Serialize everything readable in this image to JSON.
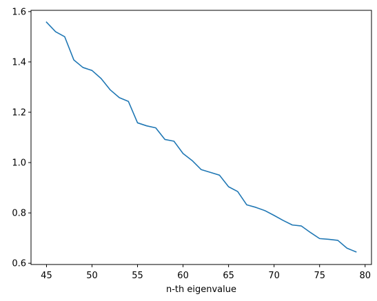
{
  "chart_data": {
    "type": "line",
    "title": "",
    "xlabel": "n-th eigenvalue",
    "ylabel": "",
    "xlim": [
      43.3,
      80.7
    ],
    "ylim": [
      0.595,
      1.605
    ],
    "xticks": [
      45,
      50,
      55,
      60,
      65,
      70,
      75,
      80
    ],
    "yticks": [
      0.6,
      0.8,
      1.0,
      1.2,
      1.4,
      1.6
    ],
    "xtick_labels": [
      "45",
      "50",
      "55",
      "60",
      "65",
      "70",
      "75",
      "80"
    ],
    "ytick_labels": [
      "0.6",
      "0.8",
      "1.0",
      "1.2",
      "1.4",
      "1.6"
    ],
    "grid": false,
    "line_color": "#1f77b4",
    "series": [
      {
        "x": [
          45,
          46,
          47,
          48,
          49,
          50,
          51,
          52,
          53,
          54,
          55,
          56,
          57,
          58,
          59,
          60,
          61,
          62,
          63,
          64,
          65,
          66,
          67,
          68,
          69,
          70,
          71,
          72,
          73,
          74,
          75,
          76,
          77,
          78,
          79
        ],
        "values": [
          1.558,
          1.52,
          1.5,
          1.408,
          1.378,
          1.366,
          1.334,
          1.289,
          1.258,
          1.243,
          1.158,
          1.146,
          1.138,
          1.092,
          1.085,
          1.036,
          1.008,
          0.972,
          0.961,
          0.95,
          0.904,
          0.885,
          0.832,
          0.822,
          0.809,
          0.79,
          0.77,
          0.752,
          0.748,
          0.722,
          0.698,
          0.695,
          0.691,
          0.66,
          0.645
        ]
      }
    ]
  }
}
